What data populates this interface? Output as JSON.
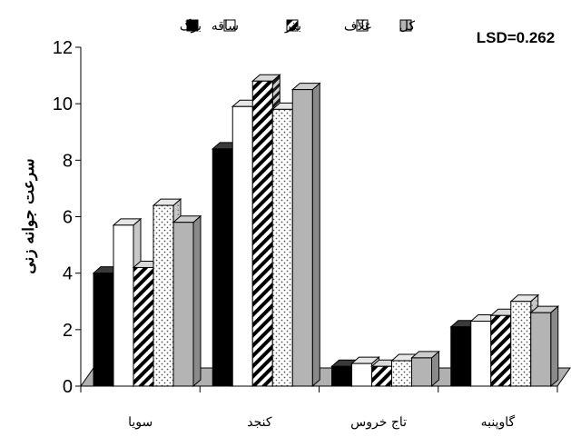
{
  "chart_data": {
    "type": "bar",
    "annotation": "LSD=0.262",
    "ylabel": "سرعت جوانه زنی",
    "xlabel": "",
    "ylim": [
      0,
      12
    ],
    "yticks": [
      "0",
      "2",
      "4",
      "6",
      "8",
      "10",
      "12"
    ],
    "categories": [
      "سویا",
      "کنجد",
      "تاج خروس",
      "گاوپنبه"
    ],
    "legend_position": "top",
    "series": [
      {
        "name": "برگ",
        "pattern": "solid-black",
        "color": "#000000",
        "values": [
          4.0,
          8.4,
          0.7,
          2.1
        ]
      },
      {
        "name": "ساقه",
        "pattern": "white",
        "color": "#ffffff",
        "values": [
          5.7,
          9.9,
          0.8,
          2.3
        ]
      },
      {
        "name": "بذر",
        "pattern": "diagonal-hatch",
        "color": "#000000",
        "values": [
          4.2,
          10.8,
          0.7,
          2.5
        ]
      },
      {
        "name": "غلاف",
        "pattern": "dotted",
        "color": "#ffffff",
        "values": [
          6.4,
          9.8,
          0.9,
          3.0
        ]
      },
      {
        "name": "کل",
        "pattern": "solid-gray",
        "color": "#b4b4b4",
        "values": [
          5.8,
          10.5,
          1.0,
          2.6
        ]
      }
    ]
  }
}
